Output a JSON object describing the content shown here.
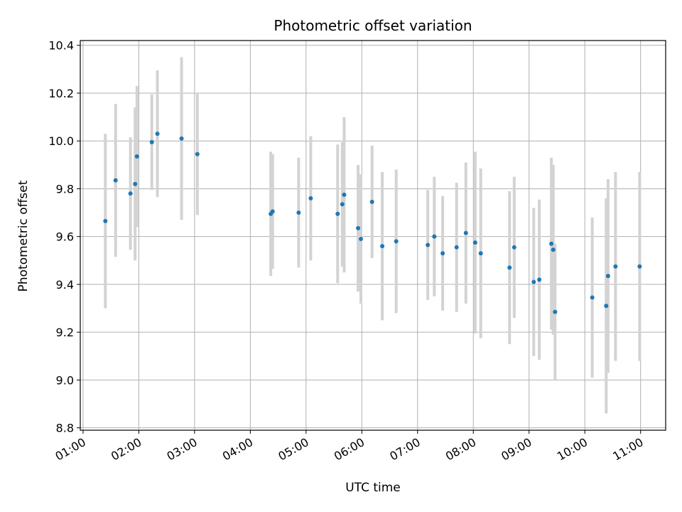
{
  "chart_data": {
    "type": "scatter",
    "title": "Photometric offset variation",
    "xlabel": "UTC time",
    "ylabel": "Photometric offset",
    "x_tick_labels": [
      "01:00",
      "02:00",
      "03:00",
      "04:00",
      "05:00",
      "06:00",
      "07:00",
      "08:00",
      "09:00",
      "10:00",
      "11:00"
    ],
    "xlim": [
      "00:57",
      "11:27"
    ],
    "y_ticks": [
      8.8,
      9.0,
      9.2,
      9.4,
      9.6,
      9.8,
      10.0,
      10.2,
      10.4
    ],
    "ylim": [
      8.79,
      10.42
    ],
    "grid": true,
    "colors": {
      "point": "#1f77b4",
      "errorbar": "#d3d3d3",
      "grid": "#b0b0b0"
    },
    "points": [
      {
        "x": "01:24",
        "y": 9.665,
        "yerr": 0.365
      },
      {
        "x": "01:35",
        "y": 9.835,
        "yerr": 0.32
      },
      {
        "x": "01:51",
        "y": 9.78,
        "yerr": 0.235
      },
      {
        "x": "01:56",
        "y": 9.82,
        "yerr": 0.32
      },
      {
        "x": "01:58",
        "y": 9.935,
        "yerr": 0.295
      },
      {
        "x": "02:14",
        "y": 9.995,
        "yerr": 0.2
      },
      {
        "x": "02:20",
        "y": 10.03,
        "yerr": 0.265
      },
      {
        "x": "02:46",
        "y": 10.01,
        "yerr": 0.34
      },
      {
        "x": "03:03",
        "y": 9.945,
        "yerr": 0.255
      },
      {
        "x": "04:22",
        "y": 9.695,
        "yerr": 0.26
      },
      {
        "x": "04:24",
        "y": 9.705,
        "yerr": 0.24
      },
      {
        "x": "04:52",
        "y": 9.7,
        "yerr": 0.23
      },
      {
        "x": "05:05",
        "y": 9.76,
        "yerr": 0.26
      },
      {
        "x": "05:34",
        "y": 9.695,
        "yerr": 0.29
      },
      {
        "x": "05:39",
        "y": 9.735,
        "yerr": 0.26
      },
      {
        "x": "05:41",
        "y": 9.775,
        "yerr": 0.325
      },
      {
        "x": "05:56",
        "y": 9.635,
        "yerr": 0.265
      },
      {
        "x": "05:59",
        "y": 9.59,
        "yerr": 0.27
      },
      {
        "x": "06:11",
        "y": 9.745,
        "yerr": 0.235
      },
      {
        "x": "06:22",
        "y": 9.56,
        "yerr": 0.31
      },
      {
        "x": "06:37",
        "y": 9.58,
        "yerr": 0.3
      },
      {
        "x": "07:11",
        "y": 9.565,
        "yerr": 0.23
      },
      {
        "x": "07:18",
        "y": 9.6,
        "yerr": 0.25
      },
      {
        "x": "07:27",
        "y": 9.53,
        "yerr": 0.24
      },
      {
        "x": "07:42",
        "y": 9.555,
        "yerr": 0.27
      },
      {
        "x": "07:52",
        "y": 9.615,
        "yerr": 0.295
      },
      {
        "x": "08:02",
        "y": 9.575,
        "yerr": 0.38
      },
      {
        "x": "08:08",
        "y": 9.53,
        "yerr": 0.355
      },
      {
        "x": "08:39",
        "y": 9.47,
        "yerr": 0.32
      },
      {
        "x": "08:44",
        "y": 9.555,
        "yerr": 0.295
      },
      {
        "x": "09:05",
        "y": 9.41,
        "yerr": 0.31
      },
      {
        "x": "09:11",
        "y": 9.42,
        "yerr": 0.335
      },
      {
        "x": "09:24",
        "y": 9.57,
        "yerr": 0.36
      },
      {
        "x": "09:26",
        "y": 9.545,
        "yerr": 0.355
      },
      {
        "x": "09:28",
        "y": 9.285,
        "yerr": 0.285
      },
      {
        "x": "10:08",
        "y": 9.345,
        "yerr": 0.335
      },
      {
        "x": "10:23",
        "y": 9.31,
        "yerr": 0.45
      },
      {
        "x": "10:25",
        "y": 9.435,
        "yerr": 0.405
      },
      {
        "x": "10:33",
        "y": 9.475,
        "yerr": 0.395
      },
      {
        "x": "10:59",
        "y": 9.475,
        "yerr": 0.395
      }
    ]
  }
}
